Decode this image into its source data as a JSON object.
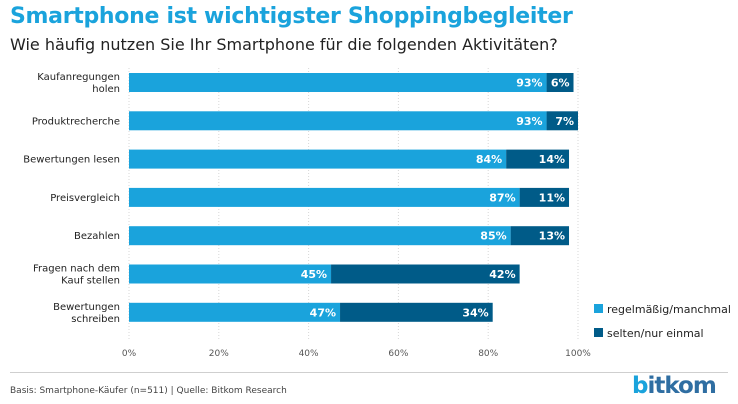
{
  "title": "Smartphone ist wichtigster Shoppingbegleiter",
  "subtitle": "Wie häufig nutzen Sie Ihr Smartphone für die folgenden Aktivitäten?",
  "source": "Basis: Smartphone-Käufer (n=511) | Quelle: Bitkom Research",
  "logo": "bitkom",
  "colors": {
    "regular": "#1aa3dc",
    "rare": "#005b88",
    "title": "#1aa3dc",
    "logo": "#2f6ea2"
  },
  "chart_data": {
    "type": "bar",
    "orientation": "horizontal",
    "stacked": true,
    "categories": [
      [
        "Kaufanregungen",
        "holen"
      ],
      [
        "Produktrecherche"
      ],
      [
        "Bewertungen lesen"
      ],
      [
        "Preisvergleich"
      ],
      [
        "Bezahlen"
      ],
      [
        "Fragen nach dem",
        "Kauf stellen"
      ],
      [
        "Bewertungen",
        "schreiben"
      ]
    ],
    "series": [
      {
        "name": "regelmäßig/manchmal",
        "color": "#1aa3dc",
        "values": [
          93,
          93,
          84,
          87,
          85,
          45,
          47
        ],
        "labels": [
          "93%",
          "93%",
          "84%",
          "87%",
          "85%",
          "45%",
          "47%"
        ]
      },
      {
        "name": "selten/nur einmal",
        "color": "#005b88",
        "values": [
          6,
          7,
          14,
          11,
          13,
          42,
          34
        ],
        "labels": [
          "6%",
          "7%",
          "14%",
          "11%",
          "13%",
          "42%",
          "34%"
        ]
      }
    ],
    "xlim": [
      0,
      100
    ],
    "xticks": [
      0,
      20,
      40,
      60,
      80,
      100
    ],
    "xtick_labels": [
      "0%",
      "20%",
      "40%",
      "60%",
      "80%",
      "100%"
    ],
    "grid": true,
    "legend": "bottom-right"
  }
}
